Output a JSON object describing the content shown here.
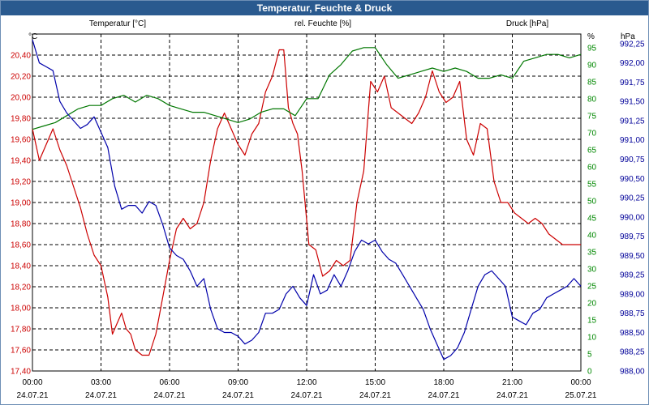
{
  "window": {
    "title": "Temperatur, Feuchte & Druck"
  },
  "chart_data": {
    "type": "line",
    "title": "Temperatur, Feuchte & Druck",
    "grid": true,
    "colors": {
      "temperature": "#cc0000",
      "humidity": "#007700",
      "pressure": "#0000aa",
      "axis_temperature": "#cc0000",
      "axis_humidity": "#008800",
      "axis_pressure": "#000099",
      "axis_time": "#000000"
    },
    "legend": {
      "temperature": "Temperatur [°C]",
      "humidity": "rel. Feuchte [%]",
      "pressure": "Druck [hPa]"
    },
    "axes": {
      "y_left": {
        "unit": "°C",
        "min": 17.4,
        "max": 20.6,
        "ticks": [
          "17,40",
          "17,60",
          "17,80",
          "18,00",
          "18,20",
          "18,40",
          "18,60",
          "18,80",
          "19,00",
          "19,20",
          "19,40",
          "19,60",
          "19,80",
          "20,00",
          "20,20",
          "20,40"
        ]
      },
      "y_right1": {
        "unit": "%",
        "min": 0,
        "max": 99,
        "ticks": [
          "0",
          "5",
          "10",
          "15",
          "20",
          "25",
          "30",
          "35",
          "40",
          "45",
          "50",
          "55",
          "60",
          "65",
          "70",
          "75",
          "80",
          "85",
          "90",
          "95"
        ]
      },
      "y_right2": {
        "unit": "hPa",
        "min": 988.0,
        "max": 992.375,
        "ticks": [
          "988,00",
          "988,25",
          "988,50",
          "988,75",
          "989,00",
          "989,25",
          "989,50",
          "989,75",
          "990,00",
          "990,25",
          "990,50",
          "990,75",
          "991,00",
          "991,25",
          "991,50",
          "991,75",
          "992,00",
          "992,25"
        ]
      },
      "x": {
        "min": 0,
        "max": 24,
        "ticks": [
          {
            "time": "00:00",
            "date": "24.07.21"
          },
          {
            "time": "03:00",
            "date": "24.07.21"
          },
          {
            "time": "06:00",
            "date": "24.07.21"
          },
          {
            "time": "09:00",
            "date": "24.07.21"
          },
          {
            "time": "12:00",
            "date": "24.07.21"
          },
          {
            "time": "15:00",
            "date": "24.07.21"
          },
          {
            "time": "18:00",
            "date": "24.07.21"
          },
          {
            "time": "21:00",
            "date": "24.07.21"
          },
          {
            "time": "00:00",
            "date": "25.07.21"
          }
        ]
      }
    },
    "series": [
      {
        "name": "Temperatur [°C]",
        "axis": "y_left",
        "x": [
          0,
          0.3,
          0.6,
          0.9,
          1.2,
          1.5,
          1.8,
          2.1,
          2.4,
          2.7,
          3.0,
          3.3,
          3.5,
          3.7,
          3.9,
          4.1,
          4.3,
          4.5,
          4.8,
          5.1,
          5.4,
          5.7,
          6.0,
          6.3,
          6.6,
          6.9,
          7.2,
          7.5,
          7.8,
          8.1,
          8.4,
          8.7,
          9.0,
          9.3,
          9.6,
          9.9,
          10.2,
          10.5,
          10.8,
          11.0,
          11.2,
          11.4,
          11.6,
          11.8,
          12.1,
          12.4,
          12.7,
          13.0,
          13.3,
          13.6,
          13.9,
          14.2,
          14.5,
          14.8,
          15.1,
          15.4,
          15.7,
          16.0,
          16.3,
          16.6,
          16.9,
          17.2,
          17.5,
          17.8,
          18.1,
          18.4,
          18.7,
          19.0,
          19.3,
          19.6,
          19.9,
          20.2,
          20.5,
          20.8,
          21.1,
          21.4,
          21.7,
          22.0,
          22.3,
          22.6,
          22.9,
          23.2,
          23.5,
          23.8,
          24.0
        ],
        "values": [
          19.7,
          19.4,
          19.55,
          19.7,
          19.5,
          19.35,
          19.15,
          18.95,
          18.7,
          18.5,
          18.4,
          18.1,
          17.75,
          17.85,
          17.95,
          17.8,
          17.75,
          17.6,
          17.55,
          17.55,
          17.75,
          18.1,
          18.45,
          18.75,
          18.85,
          18.75,
          18.8,
          19.0,
          19.4,
          19.7,
          19.85,
          19.7,
          19.55,
          19.45,
          19.65,
          19.75,
          20.05,
          20.2,
          20.45,
          20.45,
          19.9,
          19.75,
          19.65,
          19.3,
          18.6,
          18.55,
          18.3,
          18.35,
          18.45,
          18.4,
          18.45,
          19.0,
          19.3,
          20.15,
          20.05,
          20.2,
          19.9,
          19.85,
          19.8,
          19.75,
          19.85,
          20.0,
          20.25,
          20.05,
          19.95,
          20.0,
          20.15,
          19.6,
          19.45,
          19.75,
          19.7,
          19.2,
          19.0,
          19.0,
          18.9,
          18.85,
          18.8,
          18.85,
          18.8,
          18.7,
          18.65,
          18.6,
          18.6,
          18.6,
          18.6
        ]
      },
      {
        "name": "rel. Feuchte [%]",
        "axis": "y_right1",
        "x": [
          0,
          0.5,
          1.0,
          1.5,
          2.0,
          2.5,
          3.0,
          3.5,
          4.0,
          4.5,
          5.0,
          5.5,
          6.0,
          6.5,
          7.0,
          7.5,
          8.0,
          8.5,
          9.0,
          9.5,
          10.0,
          10.5,
          11.0,
          11.5,
          12.0,
          12.5,
          13.0,
          13.5,
          14.0,
          14.5,
          15.0,
          15.5,
          16.0,
          16.5,
          17.0,
          17.5,
          18.0,
          18.5,
          19.0,
          19.5,
          20.0,
          20.5,
          21.0,
          21.5,
          22.0,
          22.5,
          23.0,
          23.5,
          24.0
        ],
        "values": [
          71,
          72,
          73,
          75,
          77,
          78,
          78,
          80,
          81,
          79,
          81,
          80,
          78,
          77,
          76,
          76,
          75,
          74,
          73,
          74,
          76,
          77,
          77,
          75,
          80,
          80,
          87,
          90,
          94,
          95,
          95,
          90,
          86,
          87,
          88,
          89,
          88,
          89,
          88,
          86,
          86,
          87,
          86,
          91,
          92,
          93,
          93,
          92,
          93
        ]
      },
      {
        "name": "Druck [hPa]",
        "axis": "y_right2",
        "x": [
          0,
          0.3,
          0.6,
          0.9,
          1.2,
          1.5,
          1.8,
          2.1,
          2.4,
          2.7,
          3.0,
          3.3,
          3.6,
          3.9,
          4.2,
          4.5,
          4.8,
          5.1,
          5.4,
          5.7,
          6.0,
          6.3,
          6.6,
          6.9,
          7.2,
          7.5,
          7.8,
          8.1,
          8.4,
          8.7,
          9.0,
          9.3,
          9.6,
          9.9,
          10.2,
          10.5,
          10.8,
          11.1,
          11.4,
          11.7,
          12.0,
          12.3,
          12.6,
          12.9,
          13.2,
          13.5,
          13.8,
          14.1,
          14.4,
          14.7,
          15.0,
          15.3,
          15.6,
          15.9,
          16.2,
          16.5,
          16.8,
          17.1,
          17.4,
          17.7,
          18.0,
          18.3,
          18.6,
          18.9,
          19.2,
          19.5,
          19.8,
          20.1,
          20.4,
          20.7,
          21.0,
          21.3,
          21.6,
          21.9,
          22.2,
          22.5,
          22.8,
          23.1,
          23.4,
          23.7,
          24.0
        ],
        "values": [
          992.3,
          992.0,
          991.95,
          991.9,
          991.5,
          991.35,
          991.25,
          991.15,
          991.2,
          991.3,
          991.1,
          990.9,
          990.4,
          990.1,
          990.15,
          990.15,
          990.05,
          990.2,
          990.15,
          989.9,
          989.6,
          989.5,
          989.45,
          989.3,
          989.1,
          989.2,
          988.8,
          988.55,
          988.5,
          988.5,
          988.45,
          988.35,
          988.4,
          988.5,
          988.75,
          988.75,
          988.8,
          989.0,
          989.1,
          988.95,
          988.85,
          989.25,
          989.0,
          989.05,
          989.25,
          989.1,
          989.3,
          989.55,
          989.7,
          989.65,
          989.7,
          989.55,
          989.45,
          989.4,
          989.25,
          989.1,
          988.95,
          988.8,
          988.55,
          988.35,
          988.15,
          988.2,
          988.3,
          988.5,
          988.8,
          989.1,
          989.25,
          989.3,
          989.2,
          989.1,
          988.7,
          988.65,
          988.6,
          988.75,
          988.8,
          988.95,
          989.0,
          989.05,
          989.1,
          989.2,
          989.1
        ]
      }
    ]
  }
}
